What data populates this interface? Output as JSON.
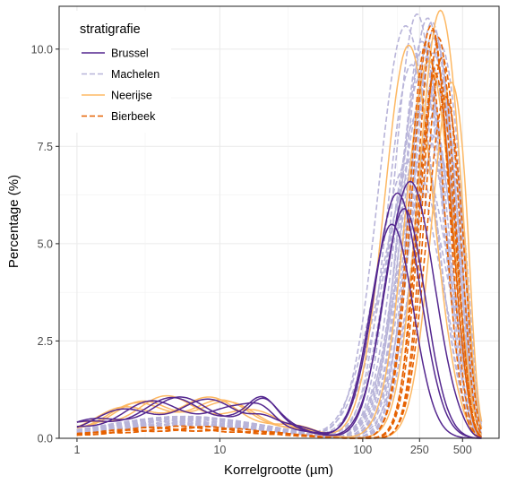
{
  "chart_data": {
    "type": "line",
    "xlabel": "Korrelgrootte (µm)",
    "ylabel": "Percentage (%)",
    "x_scale": "log10",
    "xlim": [
      0.75,
      900
    ],
    "ylim": [
      0,
      11.1
    ],
    "x_ticks": [
      1,
      10,
      100,
      250,
      500
    ],
    "x_tick_labels": [
      "1",
      "10",
      "100",
      "250",
      "500"
    ],
    "y_ticks": [
      0,
      2.5,
      5,
      7.5,
      10
    ],
    "y_tick_labels": [
      "0.0",
      "2.5",
      "5.0",
      "7.5",
      "10.0"
    ],
    "grid": true,
    "legend_position": "top-left",
    "legend_title": "stratigrafie",
    "series_groups": [
      {
        "name": "Brussel",
        "color": "#54278f",
        "dashed": false,
        "bimodal": true,
        "modes_um": [
          175,
          195,
          215,
          160
        ],
        "peaks": [
          6.3,
          5.9,
          6.6,
          5.5
        ],
        "widths": [
          0.16,
          0.15,
          0.17,
          0.15
        ],
        "fine_level": 0.85
      },
      {
        "name": "Machelen",
        "color": "#b8b4d9",
        "dashed": true,
        "bimodal": false,
        "modes_um": [
          200,
          220,
          240,
          250,
          260,
          275,
          285,
          300,
          310,
          320,
          330,
          345,
          360,
          240,
          265,
          295,
          315,
          230,
          280,
          350,
          210,
          255,
          305,
          335
        ],
        "peaks": [
          10.6,
          9.6,
          10.9,
          8.4,
          10.2,
          9.1,
          10.8,
          7.8,
          9.9,
          10.3,
          8.9,
          9.4,
          8.2,
          7.4,
          10.0,
          9.7,
          10.5,
          6.9,
          8.7,
          10.1,
          7.1,
          9.3,
          10.7,
          8.5
        ],
        "widths": [
          0.19,
          0.17,
          0.16,
          0.2,
          0.15,
          0.18,
          0.16,
          0.21,
          0.17,
          0.15,
          0.18,
          0.16,
          0.19,
          0.22,
          0.16,
          0.17,
          0.15,
          0.23,
          0.18,
          0.16,
          0.22,
          0.17,
          0.15,
          0.19
        ],
        "fine_level": 0.45
      },
      {
        "name": "Neerijse",
        "color": "#fdb863",
        "dashed": false,
        "bimodal": false,
        "modes_um": [
          210,
          350,
          420,
          290
        ],
        "peaks": [
          10.1,
          11.0,
          9.2,
          9.7
        ],
        "widths": [
          0.17,
          0.15,
          0.14,
          0.16
        ],
        "fine_level": 0.9
      },
      {
        "name": "Bierbeek",
        "color": "#e66101",
        "dashed": true,
        "bimodal": false,
        "modes_um": [
          280,
          300,
          320,
          340,
          360,
          380,
          310,
          330
        ],
        "peaks": [
          10.2,
          10.6,
          9.4,
          10.3,
          9.8,
          8.8,
          10.5,
          9.6
        ],
        "widths": [
          0.12,
          0.13,
          0.12,
          0.11,
          0.12,
          0.13,
          0.11,
          0.12
        ],
        "fine_level": 0.25
      }
    ]
  }
}
